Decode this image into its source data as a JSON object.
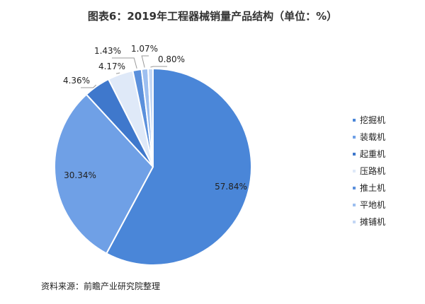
{
  "chart_data": {
    "type": "pie",
    "title": "图表6：2019年工程器械销量产品结构（单位：%）",
    "categories": [
      "挖掘机",
      "装载机",
      "起重机",
      "压路机",
      "推土机",
      "平地机",
      "摊铺机"
    ],
    "values": [
      57.84,
      30.34,
      4.36,
      4.17,
      1.43,
      1.07,
      0.8
    ],
    "value_labels": [
      "57.84%",
      "30.34%",
      "4.36%",
      "4.17%",
      "1.43%",
      "1.07%",
      "0.80%"
    ],
    "colors": [
      "#4a86d8",
      "#6fa0e6",
      "#3f78cc",
      "#dfe9f8",
      "#5b90dc",
      "#9dbff0",
      "#c3d7f5"
    ],
    "legend_position": "right",
    "source": "资料来源：前瞻产业研究院整理"
  }
}
